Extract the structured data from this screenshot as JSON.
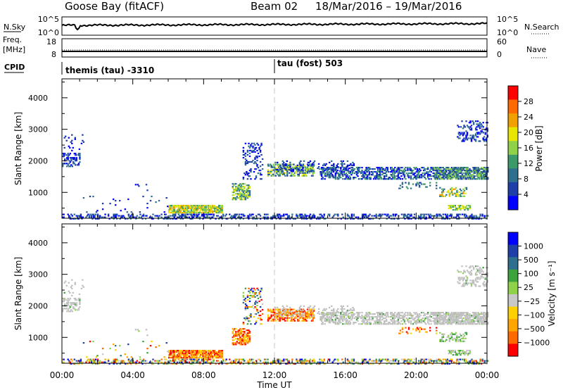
{
  "header": {
    "title": "Goose Bay (fitACF)",
    "beam": "Beam 02",
    "date_range": "18/Mar/2016 – 19/Mar/2016"
  },
  "noise_panel": {
    "left_label": "N.Sky",
    "right_label": "N.Search",
    "left_ticks": [
      "10^5",
      "10^0"
    ],
    "right_ticks": [
      "10^5",
      "10^0"
    ]
  },
  "freq_panel": {
    "left_label_1": "Freq.",
    "left_label_2": "[MHz]",
    "left_ticks": [
      "18",
      "8"
    ],
    "right_label": "Nave",
    "right_ticks": [
      "60",
      "0"
    ]
  },
  "cpid_panel": {
    "label": "CPID",
    "entries": [
      "themis (tau) -3310",
      "tau (fost) 503"
    ]
  },
  "colors": {
    "power_scale": [
      "#0000ff",
      "#1e3fa8",
      "#2e6e8e",
      "#3c9a6a",
      "#8fd24a",
      "#e6e600",
      "#f0a000",
      "#ff6a00",
      "#ff0000"
    ],
    "velocity_scale": [
      "#0000ff",
      "#1e3fa8",
      "#2e6e8e",
      "#3ca33c",
      "#8fd24a",
      "#c8c8c8",
      "#ffd000",
      "#ffa500",
      "#ff6a00",
      "#ff0000"
    ],
    "ground_scatter": "#c0c0c0"
  },
  "chart_data": [
    {
      "type": "heatmap",
      "name": "power",
      "ylabel": "Slant Range [km]",
      "ylim": [
        180,
        4600
      ],
      "yticks": [
        "1000",
        "2000",
        "3000",
        "4000"
      ],
      "xlim_hours": [
        0,
        24
      ],
      "xtick_labels": [
        "00:00",
        "04:00",
        "08:00",
        "12:00",
        "16:00",
        "20:00",
        "00:00"
      ],
      "colorbar_label": "Power [dB]",
      "colorbar_ticks": [
        "28",
        "24",
        "20",
        "16",
        "12",
        "8",
        "4"
      ],
      "colorbar_range": [
        0,
        30
      ]
    },
    {
      "type": "heatmap",
      "name": "velocity",
      "ylabel": "Slant Range [km]",
      "ylim": [
        180,
        4600
      ],
      "yticks": [
        "1000",
        "2000",
        "3000",
        "4000"
      ],
      "xlim_hours": [
        0,
        24
      ],
      "xtick_labels": [
        "00:00",
        "04:00",
        "08:00",
        "12:00",
        "16:00",
        "20:00",
        "00:00"
      ],
      "xlabel": "Time UT",
      "colorbar_label": "Velocity [m s⁻¹]",
      "colorbar_ticks": [
        "1000",
        "500",
        "100",
        "25",
        "−25",
        "−100",
        "−500",
        "−1000"
      ],
      "colorbar_range": [
        -1200,
        1200
      ]
    }
  ]
}
